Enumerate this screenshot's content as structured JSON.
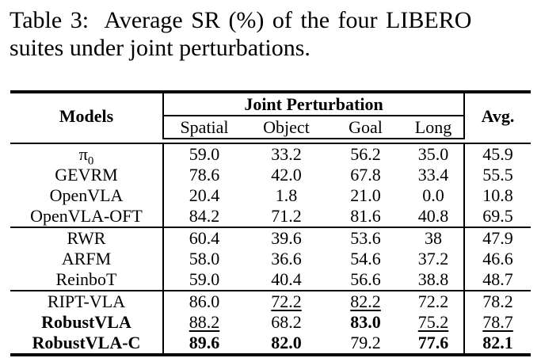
{
  "caption": {
    "line1": "Table 3:  Average SR (%) of the four LIBERO",
    "line2": "suites under joint perturbations."
  },
  "table": {
    "header": {
      "models": "Models",
      "group": "Joint Perturbation",
      "subcolumns": [
        "Spatial",
        "Object",
        "Goal",
        "Long"
      ],
      "avg": "Avg."
    },
    "groups": [
      {
        "rows": [
          {
            "model": "π",
            "model_sub": "0",
            "model_style": "normal",
            "values": [
              {
                "t": "59.0",
                "s": "normal"
              },
              {
                "t": "33.2",
                "s": "normal"
              },
              {
                "t": "56.2",
                "s": "normal"
              },
              {
                "t": "35.0",
                "s": "normal"
              },
              {
                "t": "45.9",
                "s": "normal"
              }
            ]
          },
          {
            "model": "GEVRM",
            "model_style": "normal",
            "values": [
              {
                "t": "78.6",
                "s": "normal"
              },
              {
                "t": "42.0",
                "s": "normal"
              },
              {
                "t": "67.8",
                "s": "normal"
              },
              {
                "t": "33.4",
                "s": "normal"
              },
              {
                "t": "55.5",
                "s": "normal"
              }
            ]
          },
          {
            "model": "OpenVLA",
            "model_style": "normal",
            "values": [
              {
                "t": "20.4",
                "s": "normal"
              },
              {
                "t": "1.8",
                "s": "normal"
              },
              {
                "t": "21.0",
                "s": "normal"
              },
              {
                "t": "0.0",
                "s": "normal"
              },
              {
                "t": "10.8",
                "s": "normal"
              }
            ]
          },
          {
            "model": "OpenVLA-OFT",
            "model_style": "normal",
            "values": [
              {
                "t": "84.2",
                "s": "normal"
              },
              {
                "t": "71.2",
                "s": "normal"
              },
              {
                "t": "81.6",
                "s": "normal"
              },
              {
                "t": "40.8",
                "s": "normal"
              },
              {
                "t": "69.5",
                "s": "normal"
              }
            ]
          }
        ]
      },
      {
        "rows": [
          {
            "model": "RWR",
            "model_style": "normal",
            "values": [
              {
                "t": "60.4",
                "s": "normal"
              },
              {
                "t": "39.6",
                "s": "normal"
              },
              {
                "t": "53.6",
                "s": "normal"
              },
              {
                "t": "38",
                "s": "normal"
              },
              {
                "t": "47.9",
                "s": "normal"
              }
            ]
          },
          {
            "model": "ARFM",
            "model_style": "normal",
            "values": [
              {
                "t": "58.0",
                "s": "normal"
              },
              {
                "t": "36.6",
                "s": "normal"
              },
              {
                "t": "54.6",
                "s": "normal"
              },
              {
                "t": "37.2",
                "s": "normal"
              },
              {
                "t": "46.6",
                "s": "normal"
              }
            ]
          },
          {
            "model": "ReinboT",
            "model_style": "normal",
            "values": [
              {
                "t": "59.0",
                "s": "normal"
              },
              {
                "t": "40.4",
                "s": "normal"
              },
              {
                "t": "56.6",
                "s": "normal"
              },
              {
                "t": "38.8",
                "s": "normal"
              },
              {
                "t": "48.7",
                "s": "normal"
              }
            ]
          }
        ]
      },
      {
        "rows": [
          {
            "model": "RIPT-VLA",
            "model_style": "normal",
            "values": [
              {
                "t": "86.0",
                "s": "normal"
              },
              {
                "t": "72.2",
                "s": "underline"
              },
              {
                "t": "82.2",
                "s": "underline"
              },
              {
                "t": "72.2",
                "s": "normal"
              },
              {
                "t": "78.2",
                "s": "normal"
              }
            ]
          },
          {
            "model": "RobustVLA",
            "model_style": "bold",
            "values": [
              {
                "t": "88.2",
                "s": "underline"
              },
              {
                "t": "68.2",
                "s": "normal"
              },
              {
                "t": "83.0",
                "s": "bold"
              },
              {
                "t": "75.2",
                "s": "underline"
              },
              {
                "t": "78.7",
                "s": "underline"
              }
            ]
          },
          {
            "model": "RobustVLA-C",
            "model_style": "bold",
            "values": [
              {
                "t": "89.6",
                "s": "bold"
              },
              {
                "t": "82.0",
                "s": "bold"
              },
              {
                "t": "79.2",
                "s": "normal"
              },
              {
                "t": "77.6",
                "s": "bold"
              },
              {
                "t": "82.1",
                "s": "bold"
              }
            ]
          }
        ]
      }
    ]
  }
}
